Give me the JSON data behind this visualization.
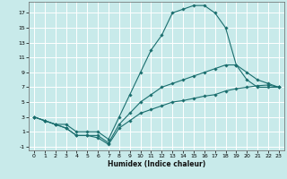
{
  "title": "",
  "xlabel": "Humidex (Indice chaleur)",
  "background_color": "#c8eaea",
  "grid_color": "#ffffff",
  "line_color": "#1a6e6e",
  "xlim": [
    -0.5,
    23.5
  ],
  "ylim": [
    -1.5,
    18.5
  ],
  "xticks": [
    0,
    1,
    2,
    3,
    4,
    5,
    6,
    7,
    8,
    9,
    10,
    11,
    12,
    13,
    14,
    15,
    16,
    17,
    18,
    19,
    20,
    21,
    22,
    23
  ],
  "yticks": [
    -1,
    1,
    3,
    5,
    7,
    9,
    11,
    13,
    15,
    17
  ],
  "series": [
    {
      "x": [
        0,
        1,
        2,
        3,
        4,
        5,
        6,
        7,
        8,
        9,
        10,
        11,
        12,
        13,
        14,
        15,
        16,
        17,
        18,
        19,
        20,
        21,
        22,
        23
      ],
      "y": [
        3,
        2.5,
        2,
        2,
        1,
        1,
        1,
        0,
        3,
        6,
        9,
        12,
        14,
        17,
        17.5,
        18,
        18,
        17,
        15,
        10,
        8,
        7,
        7,
        7
      ]
    },
    {
      "x": [
        0,
        1,
        2,
        3,
        4,
        5,
        6,
        7,
        8,
        9,
        10,
        11,
        12,
        13,
        14,
        15,
        16,
        17,
        18,
        19,
        20,
        21,
        22,
        23
      ],
      "y": [
        3,
        2.5,
        2,
        1.5,
        0.5,
        0.5,
        0.5,
        -0.5,
        2,
        3.5,
        5,
        6,
        7,
        7.5,
        8,
        8.5,
        9,
        9.5,
        10,
        10,
        9,
        8,
        7.5,
        7
      ]
    },
    {
      "x": [
        0,
        1,
        2,
        3,
        4,
        5,
        6,
        7,
        8,
        9,
        10,
        11,
        12,
        13,
        14,
        15,
        16,
        17,
        18,
        19,
        20,
        21,
        22,
        23
      ],
      "y": [
        3,
        2.5,
        2,
        1.5,
        0.5,
        0.5,
        0.2,
        -0.7,
        1.5,
        2.5,
        3.5,
        4,
        4.5,
        5,
        5.2,
        5.5,
        5.8,
        6,
        6.5,
        6.8,
        7,
        7.2,
        7.3,
        7
      ]
    }
  ]
}
